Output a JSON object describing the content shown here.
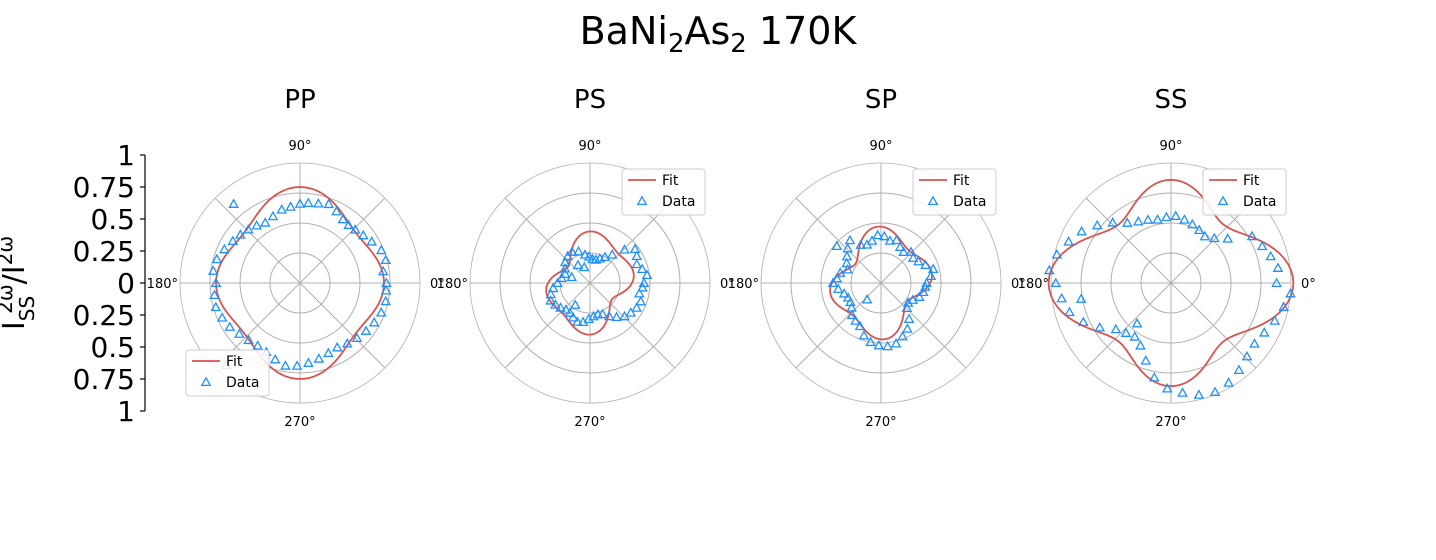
{
  "figure": {
    "title_main": "BaNi",
    "title_sub1": "2",
    "title_mid": "As",
    "title_sub2": "2",
    "title_tail": " 170K",
    "ylabel_main": "I",
    "ylabel_sub": "SS",
    "ylabel_sup": "2ω",
    "ylabel_sep": "/I",
    "ylabel_sup2": "2ω",
    "yticks": [
      "1",
      "0.75",
      "0.5",
      "0.25",
      "0",
      "0.25",
      "0.5",
      "0.75",
      "1"
    ],
    "angle_labels": [
      "0°",
      "90°",
      "180°",
      "270°"
    ]
  },
  "colors": {
    "fit": "#d9534f",
    "data": "#1e90ff",
    "grid": "#b0b0b0"
  },
  "chart_data": [
    {
      "type": "polar",
      "panel": "PP",
      "title": "PP",
      "rlim": [
        0,
        1
      ],
      "rgrid": [
        0.25,
        0.5,
        0.75,
        1.0
      ],
      "angle_unit": "degrees",
      "legend": {
        "position": "lower-left",
        "entries": [
          "Fit",
          "Data"
        ]
      },
      "fit": {
        "a": 0.69,
        "b1": 0.0,
        "c1": 0.0,
        "b2": -0.05,
        "c2": 0.0,
        "b3": 0.0,
        "c3": 0.0,
        "b4": 0.06,
        "c4": 0.0
      },
      "data": [
        [
          0,
          0.72
        ],
        [
          8,
          0.7
        ],
        [
          15,
          0.74
        ],
        [
          22,
          0.73
        ],
        [
          30,
          0.69
        ],
        [
          37,
          0.66
        ],
        [
          44,
          0.64
        ],
        [
          50,
          0.63
        ],
        [
          56,
          0.64
        ],
        [
          63,
          0.67
        ],
        [
          70,
          0.7
        ],
        [
          77,
          0.68
        ],
        [
          84,
          0.67
        ],
        [
          90,
          0.66
        ],
        [
          97,
          0.64
        ],
        [
          104,
          0.63
        ],
        [
          112,
          0.6
        ],
        [
          120,
          0.58
        ],
        [
          127,
          0.6
        ],
        [
          134,
          0.62
        ],
        [
          141,
          0.64
        ],
        [
          148,
          0.66
        ],
        [
          156,
          0.69
        ],
        [
          164,
          0.72
        ],
        [
          172,
          0.73
        ],
        [
          180,
          0.7
        ],
        [
          188,
          0.72
        ],
        [
          196,
          0.73
        ],
        [
          204,
          0.71
        ],
        [
          212,
          0.69
        ],
        [
          220,
          0.66
        ],
        [
          228,
          0.64
        ],
        [
          236,
          0.63
        ],
        [
          244,
          0.64
        ],
        [
          252,
          0.67
        ],
        [
          260,
          0.7
        ],
        [
          268,
          0.69
        ],
        [
          276,
          0.67
        ],
        [
          284,
          0.65
        ],
        [
          292,
          0.63
        ],
        [
          300,
          0.62
        ],
        [
          308,
          0.64
        ],
        [
          316,
          0.66
        ],
        [
          324,
          0.68
        ],
        [
          332,
          0.7
        ],
        [
          340,
          0.72
        ],
        [
          348,
          0.73
        ],
        [
          355,
          0.72
        ],
        [
          130,
          0.86
        ],
        [
          228,
          0.92
        ]
      ]
    },
    {
      "type": "polar",
      "panel": "PS",
      "title": "PS",
      "rlim": [
        0,
        1
      ],
      "rgrid": [
        0.25,
        0.5,
        0.75,
        1.0
      ],
      "angle_unit": "degrees",
      "legend": {
        "position": "top-right",
        "entries": [
          "Fit",
          "Data"
        ]
      },
      "fit": {
        "a": 0.34,
        "b1": 0.0,
        "c1": 0.0,
        "b2": -0.04,
        "c2": 0.05,
        "b3": 0.0,
        "c3": 0.0,
        "b4": 0.05,
        "c4": 0.02
      },
      "data": [
        [
          0,
          0.45
        ],
        [
          8,
          0.48
        ],
        [
          15,
          0.45
        ],
        [
          22,
          0.42
        ],
        [
          30,
          0.45
        ],
        [
          37,
          0.47
        ],
        [
          44,
          0.4
        ],
        [
          52,
          0.3
        ],
        [
          60,
          0.25
        ],
        [
          68,
          0.22
        ],
        [
          76,
          0.2
        ],
        [
          84,
          0.2
        ],
        [
          92,
          0.22
        ],
        [
          100,
          0.24
        ],
        [
          110,
          0.28
        ],
        [
          120,
          0.3
        ],
        [
          130,
          0.29
        ],
        [
          140,
          0.27
        ],
        [
          150,
          0.24
        ],
        [
          160,
          0.22
        ],
        [
          170,
          0.24
        ],
        [
          180,
          0.27
        ],
        [
          188,
          0.31
        ],
        [
          196,
          0.34
        ],
        [
          204,
          0.36
        ],
        [
          212,
          0.34
        ],
        [
          220,
          0.32
        ],
        [
          228,
          0.3
        ],
        [
          236,
          0.3
        ],
        [
          244,
          0.32
        ],
        [
          252,
          0.34
        ],
        [
          260,
          0.33
        ],
        [
          268,
          0.3
        ],
        [
          276,
          0.28
        ],
        [
          284,
          0.27
        ],
        [
          292,
          0.28
        ],
        [
          300,
          0.32
        ],
        [
          308,
          0.36
        ],
        [
          316,
          0.4
        ],
        [
          324,
          0.42
        ],
        [
          332,
          0.44
        ],
        [
          340,
          0.45
        ],
        [
          348,
          0.42
        ],
        [
          355,
          0.44
        ],
        [
          124,
          0.18
        ],
        [
          110,
          0.14
        ],
        [
          162,
          0.16
        ],
        [
          236,
          0.22
        ]
      ]
    },
    {
      "type": "polar",
      "panel": "SP",
      "title": "SP",
      "rlim": [
        0,
        1
      ],
      "rgrid": [
        0.25,
        0.5,
        0.75,
        1.0
      ],
      "angle_unit": "degrees",
      "legend": {
        "position": "top-right",
        "entries": [
          "Fit",
          "Data"
        ]
      },
      "fit": {
        "a": 0.38,
        "b1": 0.0,
        "c1": 0.0,
        "b2": -0.03,
        "c2": 0.04,
        "b3": 0.0,
        "c3": 0.0,
        "b4": 0.06,
        "c4": 0.03
      },
      "data": [
        [
          0,
          0.38
        ],
        [
          8,
          0.42
        ],
        [
          15,
          0.45
        ],
        [
          22,
          0.4
        ],
        [
          30,
          0.36
        ],
        [
          38,
          0.34
        ],
        [
          46,
          0.36
        ],
        [
          54,
          0.32
        ],
        [
          62,
          0.34
        ],
        [
          70,
          0.38
        ],
        [
          78,
          0.36
        ],
        [
          86,
          0.39
        ],
        [
          94,
          0.4
        ],
        [
          102,
          0.36
        ],
        [
          110,
          0.34
        ],
        [
          118,
          0.36
        ],
        [
          126,
          0.44
        ],
        [
          134,
          0.4
        ],
        [
          142,
          0.36
        ],
        [
          150,
          0.33
        ],
        [
          158,
          0.3
        ],
        [
          166,
          0.35
        ],
        [
          174,
          0.37
        ],
        [
          180,
          0.4
        ],
        [
          188,
          0.36
        ],
        [
          196,
          0.32
        ],
        [
          204,
          0.3
        ],
        [
          212,
          0.3
        ],
        [
          220,
          0.32
        ],
        [
          228,
          0.36
        ],
        [
          236,
          0.38
        ],
        [
          244,
          0.4
        ],
        [
          252,
          0.46
        ],
        [
          260,
          0.5
        ],
        [
          268,
          0.52
        ],
        [
          276,
          0.53
        ],
        [
          284,
          0.52
        ],
        [
          292,
          0.48
        ],
        [
          300,
          0.44
        ],
        [
          308,
          0.38
        ],
        [
          316,
          0.3
        ],
        [
          324,
          0.28
        ],
        [
          332,
          0.3
        ],
        [
          340,
          0.34
        ],
        [
          348,
          0.36
        ],
        [
          355,
          0.37
        ],
        [
          230,
          0.18
        ],
        [
          140,
          0.48
        ]
      ]
    },
    {
      "type": "polar",
      "panel": "SS",
      "title": "SS",
      "rlim": [
        0,
        1
      ],
      "rgrid": [
        0.25,
        0.5,
        0.75,
        1.0
      ],
      "angle_unit": "degrees",
      "legend": {
        "position": "top-right",
        "entries": [
          "Fit",
          "Data"
        ]
      },
      "fit": {
        "a": 0.8,
        "b1": 0.0,
        "c1": 0.0,
        "b2": 0.08,
        "c2": 0.0,
        "b3": 0.0,
        "c3": 0.0,
        "b4": 0.14,
        "c4": 0.0
      },
      "data": [
        [
          0,
          0.88
        ],
        [
          8,
          0.9
        ],
        [
          15,
          0.86
        ],
        [
          22,
          0.82
        ],
        [
          30,
          0.78
        ],
        [
          38,
          0.6
        ],
        [
          46,
          0.52
        ],
        [
          54,
          0.48
        ],
        [
          62,
          0.5
        ],
        [
          70,
          0.52
        ],
        [
          78,
          0.54
        ],
        [
          86,
          0.56
        ],
        [
          94,
          0.55
        ],
        [
          102,
          0.54
        ],
        [
          110,
          0.56
        ],
        [
          118,
          0.58
        ],
        [
          126,
          0.62
        ],
        [
          134,
          0.7
        ],
        [
          142,
          0.78
        ],
        [
          150,
          0.86
        ],
        [
          158,
          0.92
        ],
        [
          166,
          0.98
        ],
        [
          174,
          1.02
        ],
        [
          180,
          0.96
        ],
        [
          188,
          0.92
        ],
        [
          196,
          0.88
        ],
        [
          204,
          0.8
        ],
        [
          212,
          0.7
        ],
        [
          220,
          0.6
        ],
        [
          228,
          0.56
        ],
        [
          236,
          0.54
        ],
        [
          244,
          0.58
        ],
        [
          252,
          0.68
        ],
        [
          260,
          0.8
        ],
        [
          268,
          0.88
        ],
        [
          276,
          0.92
        ],
        [
          284,
          0.96
        ],
        [
          292,
          0.98
        ],
        [
          300,
          0.96
        ],
        [
          308,
          0.92
        ],
        [
          316,
          0.88
        ],
        [
          324,
          0.86
        ],
        [
          332,
          0.88
        ],
        [
          340,
          0.92
        ],
        [
          348,
          0.96
        ],
        [
          355,
          1.0
        ],
        [
          190,
          0.76
        ],
        [
          230,
          0.44
        ]
      ]
    }
  ]
}
